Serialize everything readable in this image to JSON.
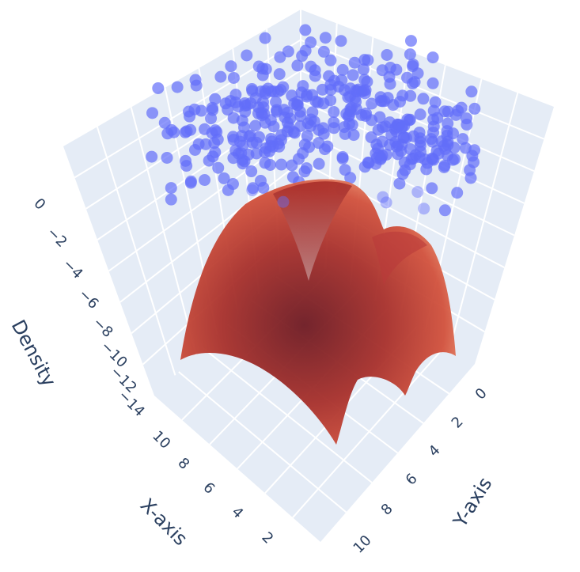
{
  "chart_data": {
    "type": "3d-scatter-surface",
    "title": "",
    "axes": {
      "x": {
        "label": "X-axis",
        "ticks": [
          "10",
          "8",
          "6",
          "4",
          "2"
        ],
        "range": [
          0,
          10
        ]
      },
      "y": {
        "label": "Y-axis",
        "ticks": [
          "0",
          "2",
          "4",
          "6",
          "8",
          "10"
        ],
        "range": [
          0,
          10
        ]
      },
      "z": {
        "label": "Density",
        "ticks": [
          "0",
          "−2",
          "−4",
          "−6",
          "−8",
          "−10",
          "−12",
          "−14"
        ],
        "range": [
          -15,
          0.5
        ]
      }
    },
    "series": [
      {
        "type": "scatter3d",
        "marker_color": "#636efa",
        "opacity": 0.7,
        "approx_points": 400,
        "z_level": "near 0"
      },
      {
        "type": "surface",
        "colorscale": [
          "#f4a582",
          "#d6604d",
          "#b2182b",
          "#67001f"
        ],
        "shape": "four-peaked dome with minimum near center, max near 0"
      }
    ],
    "grid": true,
    "pane_color": "#e5ecf6"
  }
}
